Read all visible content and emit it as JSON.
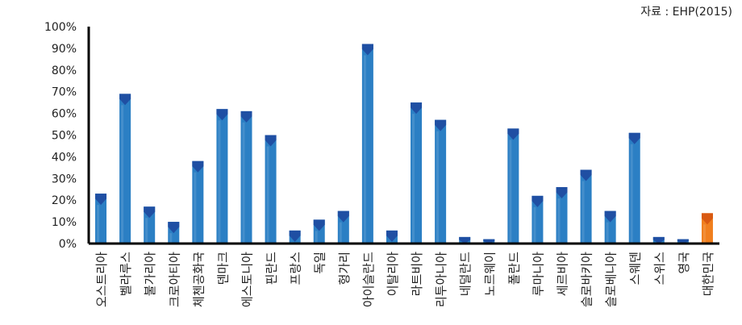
{
  "source_note": "자료 : EHP(2015)",
  "chart_data": {
    "type": "bar",
    "title": "",
    "xlabel": "",
    "ylabel": "",
    "ylim": [
      0,
      100
    ],
    "y_tick_values": [
      0,
      10,
      20,
      30,
      40,
      50,
      60,
      70,
      80,
      90,
      100
    ],
    "y_tick_labels": [
      "0%",
      "10%",
      "20%",
      "30%",
      "40%",
      "50%",
      "60%",
      "70%",
      "80%",
      "90%",
      "100%"
    ],
    "grid": false,
    "legend": "none",
    "categories": [
      "오스트리아",
      "벨라루스",
      "불가리아",
      "크로아티아",
      "체첸공화국",
      "덴마크",
      "에스토니아",
      "핀란드",
      "프랑스",
      "독일",
      "헝가리",
      "아이슬란드",
      "이탈리아",
      "라트비아",
      "리투아니아",
      "네덜란드",
      "노르웨이",
      "폴란드",
      "루마니아",
      "세르비아",
      "슬로바키아",
      "슬로베니아",
      "스웨덴",
      "스위스",
      "영국",
      "대한민국"
    ],
    "values": [
      23,
      69,
      17,
      10,
      38,
      62,
      61,
      50,
      6,
      11,
      15,
      92,
      6,
      65,
      57,
      3,
      2,
      53,
      22,
      26,
      34,
      15,
      51,
      3,
      2,
      14
    ],
    "highlight_category": "대한민국",
    "colors": {
      "bar": "#2b7fc4",
      "bar_top": "#1f4fa3",
      "highlight": "#f07f1e",
      "highlight_top": "#d95a12",
      "axis": "#000000"
    }
  }
}
